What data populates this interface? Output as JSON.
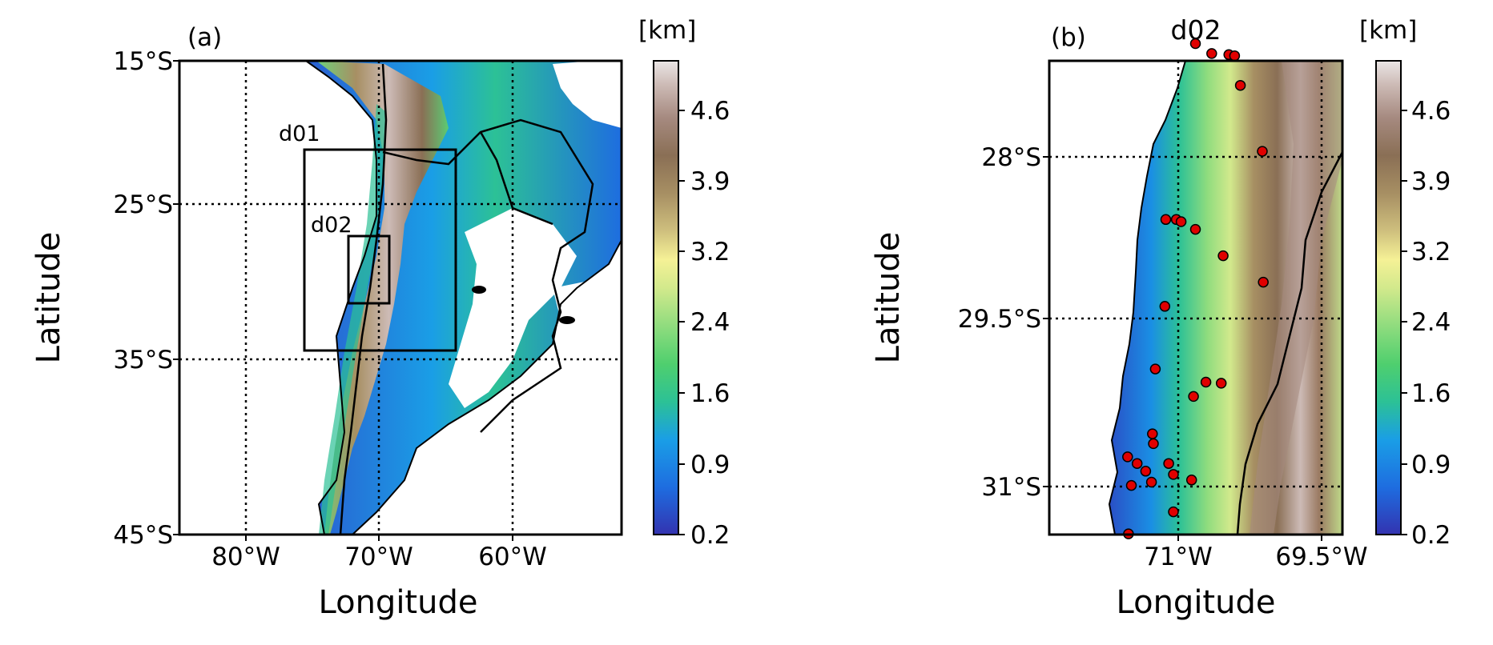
{
  "figure": {
    "panel_a": {
      "label": "(a)",
      "xlabel": "Longitude",
      "ylabel": "Latitude",
      "lat_ticks": [
        "15°S",
        "25°S",
        "35°S",
        "45°S"
      ],
      "lon_ticks": [
        "80°W",
        "70°W",
        "60°W"
      ],
      "domain_labels": {
        "d01": "d01",
        "d02": "d02"
      },
      "colorbar": {
        "unit": "[km]",
        "ticks": [
          "4.6",
          "3.9",
          "3.2",
          "2.4",
          "1.6",
          "0.9",
          "0.2"
        ]
      }
    },
    "panel_b": {
      "label": "(b)",
      "title": "d02",
      "xlabel": "Longitude",
      "ylabel": "Latitude",
      "lat_ticks": [
        "28°S",
        "29.5°S",
        "31°S"
      ],
      "lon_ticks": [
        "71°W",
        "69.5°W"
      ],
      "colorbar": {
        "unit": "[km]",
        "ticks": [
          "4.6",
          "3.9",
          "3.2",
          "2.4",
          "1.6",
          "0.9",
          "0.2"
        ]
      },
      "stations": [
        {
          "lon": -70.82,
          "lat": -26.97
        },
        {
          "lon": -70.65,
          "lat": -27.06
        },
        {
          "lon": -70.47,
          "lat": -27.07
        },
        {
          "lon": -70.41,
          "lat": -27.08
        },
        {
          "lon": -70.35,
          "lat": -27.35
        },
        {
          "lon": -70.12,
          "lat": -27.95
        },
        {
          "lon": -71.13,
          "lat": -28.57
        },
        {
          "lon": -71.02,
          "lat": -28.57
        },
        {
          "lon": -70.97,
          "lat": -28.59
        },
        {
          "lon": -70.82,
          "lat": -28.66
        },
        {
          "lon": -70.53,
          "lat": -28.9
        },
        {
          "lon": -70.11,
          "lat": -29.14
        },
        {
          "lon": -71.14,
          "lat": -29.36
        },
        {
          "lon": -71.24,
          "lat": -29.93
        },
        {
          "lon": -70.71,
          "lat": -30.05
        },
        {
          "lon": -70.55,
          "lat": -30.06
        },
        {
          "lon": -70.84,
          "lat": -30.18
        },
        {
          "lon": -71.27,
          "lat": -30.52
        },
        {
          "lon": -71.26,
          "lat": -30.61
        },
        {
          "lon": -71.53,
          "lat": -30.73
        },
        {
          "lon": -71.43,
          "lat": -30.79
        },
        {
          "lon": -71.34,
          "lat": -30.86
        },
        {
          "lon": -71.1,
          "lat": -30.79
        },
        {
          "lon": -71.05,
          "lat": -30.89
        },
        {
          "lon": -71.28,
          "lat": -30.96
        },
        {
          "lon": -71.49,
          "lat": -30.99
        },
        {
          "lon": -70.86,
          "lat": -30.94
        },
        {
          "lon": -71.05,
          "lat": -31.23
        },
        {
          "lon": -71.52,
          "lat": -31.43
        }
      ]
    }
  },
  "colors": {
    "terrain_ramp": [
      "#3333b0",
      "#1e6de0",
      "#1a9ee6",
      "#2cc196",
      "#4fcf6e",
      "#8fdc7e",
      "#d2e98c",
      "#f5f196",
      "#cfc07e",
      "#a78f63",
      "#8a6f55",
      "#a68a80",
      "#cdbbb6",
      "#ebe6e6"
    ],
    "station_fill": "#e00000"
  }
}
